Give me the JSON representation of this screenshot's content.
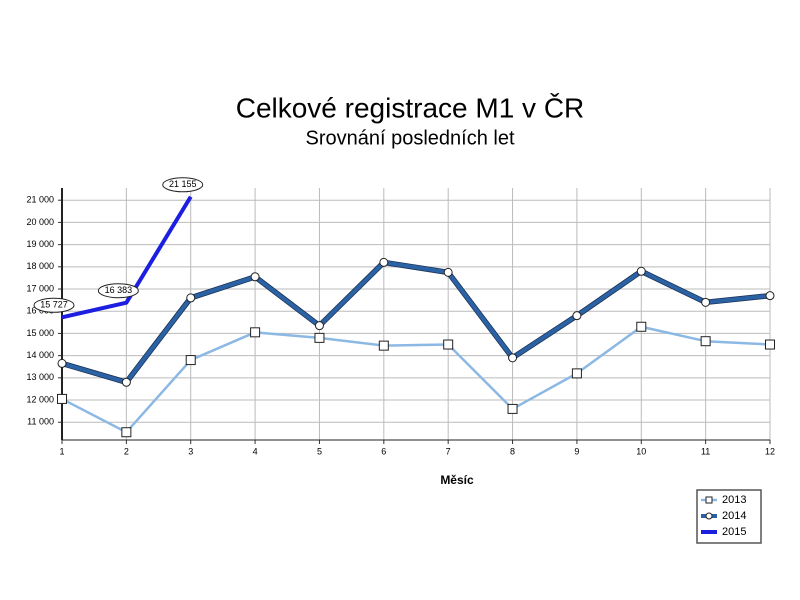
{
  "chart_data": {
    "type": "line",
    "title": "Celkové registrace M1 v ČR",
    "subtitle": "Srovnání posledních let",
    "x_label": "Měsíc",
    "x": [
      1,
      2,
      3,
      4,
      5,
      6,
      7,
      8,
      9,
      10,
      11,
      12
    ],
    "xlim": [
      1,
      12
    ],
    "xticks": [
      1,
      2,
      3,
      4,
      5,
      6,
      7,
      8,
      9,
      10,
      11,
      12
    ],
    "ylim": [
      10200,
      21550
    ],
    "yticks": [
      {
        "value": 11000,
        "label": "11 000"
      },
      {
        "value": 12000,
        "label": "12 000"
      },
      {
        "value": 13000,
        "label": "13 000"
      },
      {
        "value": 14000,
        "label": "14 000"
      },
      {
        "value": 15000,
        "label": "15 000"
      },
      {
        "value": 16000,
        "label": "16 000"
      },
      {
        "value": 17000,
        "label": "17 000"
      },
      {
        "value": 18000,
        "label": "18 000"
      },
      {
        "value": 19000,
        "label": "19 000"
      },
      {
        "value": 20000,
        "label": "20 000"
      },
      {
        "value": 21000,
        "label": "21 000"
      }
    ],
    "grid": true,
    "legend": "bottom-right",
    "series": [
      {
        "name": "2013",
        "color": "#8cb8e4",
        "marker": "square",
        "values": [
          12050,
          10550,
          13800,
          15050,
          14800,
          14450,
          14500,
          11600,
          13200,
          15300,
          14650,
          14500
        ]
      },
      {
        "name": "2014",
        "color": "#2b62a3",
        "marker": "circle",
        "values": [
          13650,
          12800,
          16600,
          17550,
          15350,
          18200,
          17750,
          13900,
          15800,
          17800,
          16400,
          16700
        ]
      },
      {
        "name": "2015",
        "color": "#1c1ee0",
        "values": [
          15727,
          16383,
          21155,
          null,
          null,
          null,
          null,
          null,
          null,
          null,
          null,
          null
        ],
        "value_labels": [
          "15 727",
          "16 383",
          "21 155",
          null,
          null,
          null,
          null,
          null,
          null,
          null,
          null,
          null
        ]
      }
    ]
  }
}
